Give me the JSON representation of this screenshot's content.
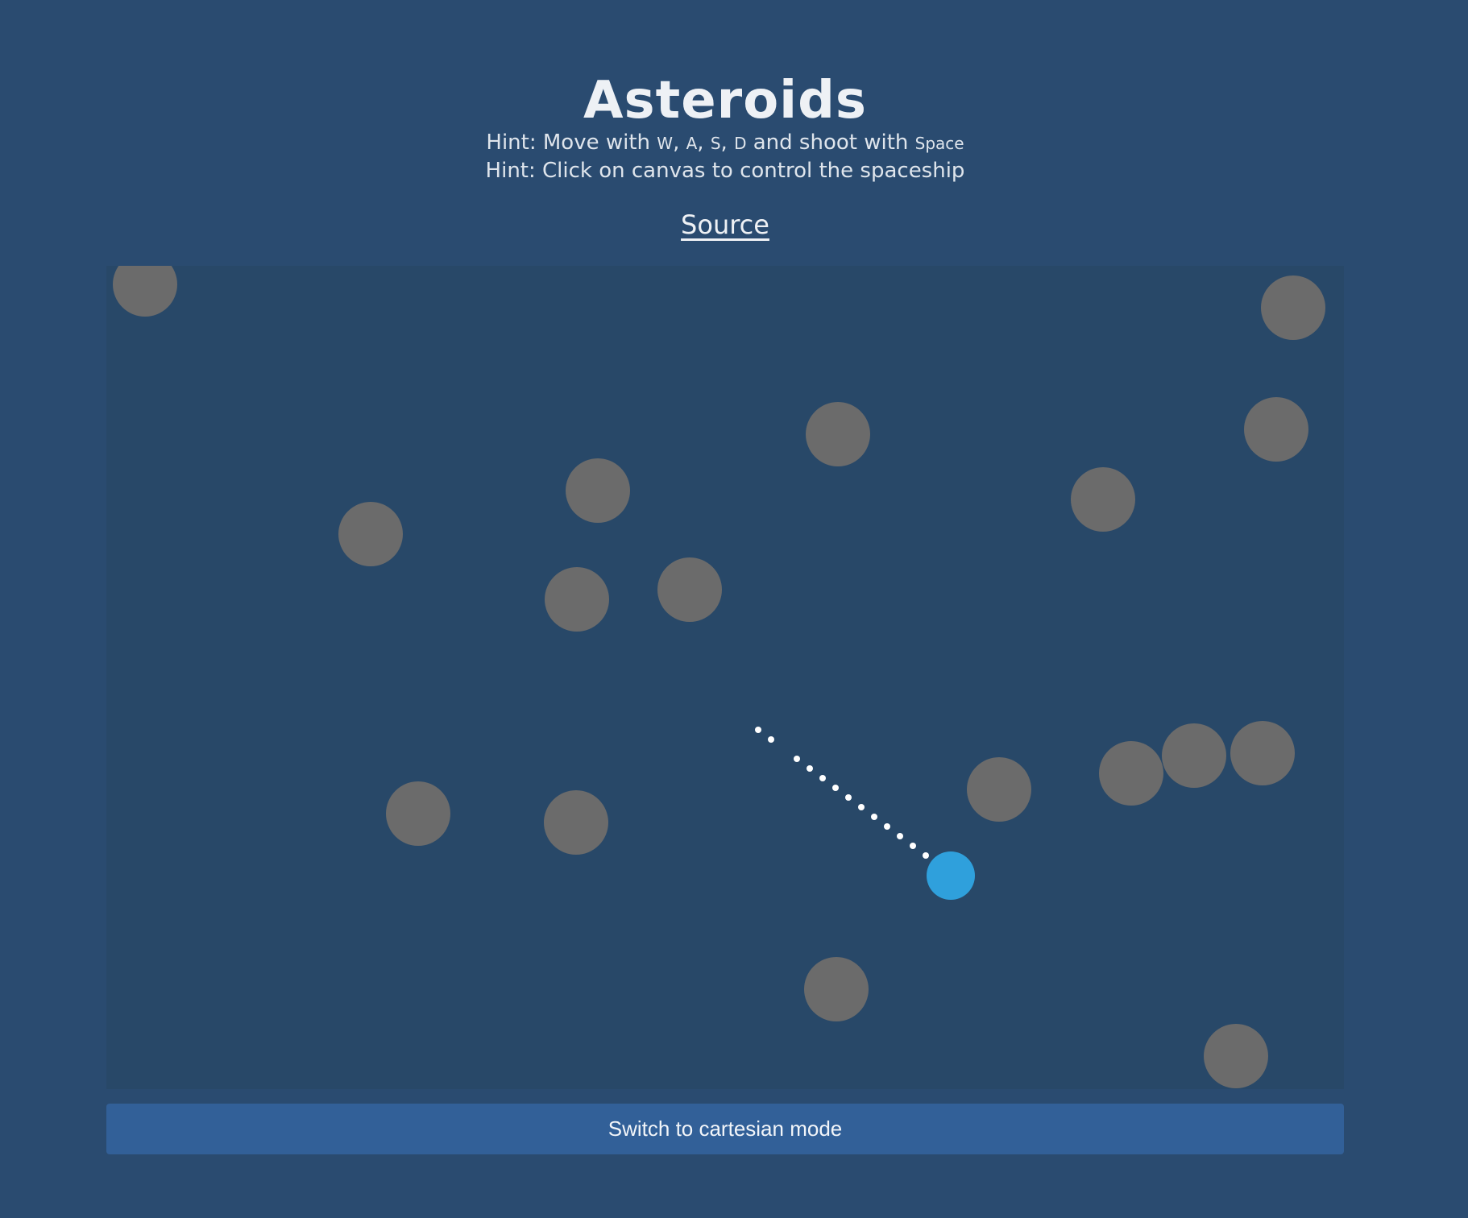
{
  "header": {
    "title": "Asteroids",
    "hint1_prefix": "Hint: Move with ",
    "keys": [
      "W",
      "A",
      "S",
      "D"
    ],
    "hint1_middle": " and shoot with ",
    "shoot_key": "Space",
    "hint2": "Hint: Click on canvas to control the spaceship",
    "source_label": "Source"
  },
  "colors": {
    "asteroid": "#6b6b6b",
    "ship": "#2fa0dc",
    "bullet": "#ffffff"
  },
  "controls": {
    "mode_button_label": "Switch to cartesian mode"
  }
}
